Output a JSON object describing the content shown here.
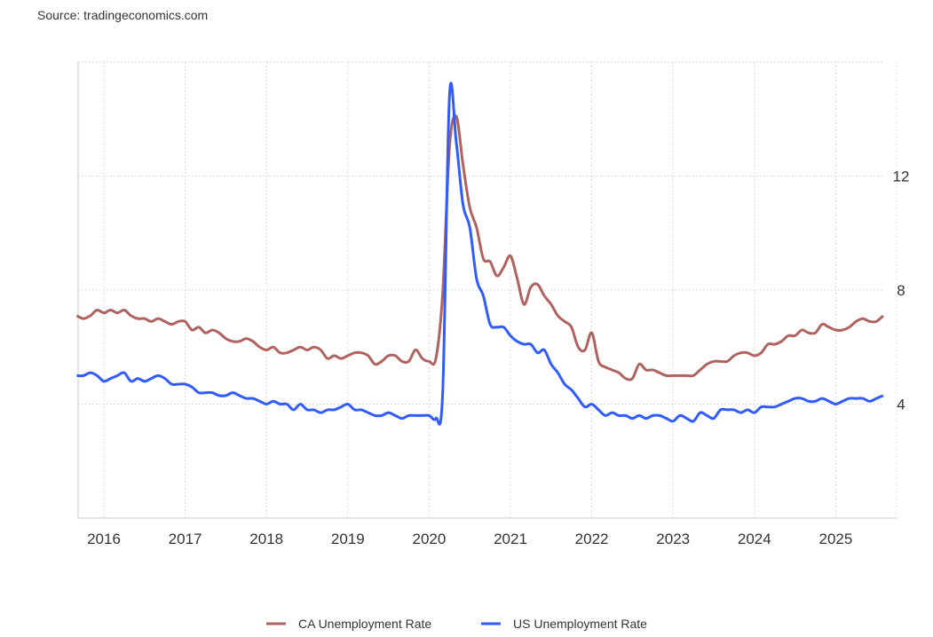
{
  "source": "Source: tradingeconomics.com",
  "chart_data": {
    "type": "line",
    "title": "",
    "xlabel": "",
    "ylabel": "",
    "x_start": "2015-09",
    "x_frequency": "monthly",
    "x_ticks": [
      "2016",
      "2017",
      "2018",
      "2019",
      "2020",
      "2021",
      "2022",
      "2023",
      "2024",
      "2025"
    ],
    "y_ticks": [
      "4",
      "8",
      "12"
    ],
    "ylim": [
      0,
      16
    ],
    "grid": true,
    "legend_position": "bottom",
    "series": [
      {
        "name": "CA Unemployment Rate",
        "color": "#b0625e",
        "values": [
          7.1,
          7.0,
          7.1,
          7.3,
          7.2,
          7.3,
          7.2,
          7.3,
          7.1,
          7.0,
          7.0,
          6.9,
          7.0,
          6.9,
          6.8,
          6.9,
          6.9,
          6.6,
          6.7,
          6.5,
          6.6,
          6.5,
          6.3,
          6.2,
          6.2,
          6.3,
          6.2,
          6.0,
          5.9,
          6.0,
          5.8,
          5.8,
          5.9,
          6.0,
          5.9,
          6.0,
          5.9,
          5.6,
          5.7,
          5.6,
          5.7,
          5.8,
          5.8,
          5.7,
          5.4,
          5.5,
          5.7,
          5.7,
          5.5,
          5.5,
          5.9,
          5.6,
          5.5,
          5.6,
          7.9,
          13.0,
          14.1,
          12.4,
          10.9,
          10.2,
          9.1,
          9.0,
          8.5,
          8.8,
          9.2,
          8.4,
          7.5,
          8.1,
          8.2,
          7.8,
          7.5,
          7.1,
          6.9,
          6.7,
          6.0,
          5.9,
          6.5,
          5.5,
          5.3,
          5.2,
          5.1,
          4.9,
          4.9,
          5.4,
          5.2,
          5.2,
          5.1,
          5.0,
          5.0,
          5.0,
          5.0,
          5.0,
          5.2,
          5.4,
          5.5,
          5.5,
          5.5,
          5.7,
          5.8,
          5.8,
          5.7,
          5.8,
          6.1,
          6.1,
          6.2,
          6.4,
          6.4,
          6.6,
          6.5,
          6.5,
          6.8,
          6.7,
          6.6,
          6.6,
          6.7,
          6.9,
          7.0,
          6.9,
          6.9,
          7.1
        ]
      },
      {
        "name": "US Unemployment Rate",
        "color": "#2f5bff",
        "values": [
          5.0,
          5.0,
          5.1,
          5.0,
          4.8,
          4.9,
          5.0,
          5.1,
          4.8,
          4.9,
          4.8,
          4.9,
          5.0,
          4.9,
          4.7,
          4.7,
          4.7,
          4.6,
          4.4,
          4.4,
          4.4,
          4.3,
          4.3,
          4.4,
          4.3,
          4.2,
          4.2,
          4.1,
          4.0,
          4.1,
          4.0,
          4.0,
          3.8,
          4.0,
          3.8,
          3.8,
          3.7,
          3.8,
          3.8,
          3.9,
          4.0,
          3.8,
          3.8,
          3.7,
          3.6,
          3.6,
          3.7,
          3.6,
          3.5,
          3.6,
          3.6,
          3.6,
          3.6,
          3.5,
          4.4,
          14.8,
          13.2,
          11.0,
          10.2,
          8.4,
          7.8,
          6.8,
          6.7,
          6.7,
          6.4,
          6.2,
          6.1,
          6.1,
          5.8,
          5.9,
          5.4,
          5.1,
          4.7,
          4.5,
          4.2,
          3.9,
          4.0,
          3.8,
          3.6,
          3.7,
          3.6,
          3.6,
          3.5,
          3.6,
          3.5,
          3.6,
          3.6,
          3.5,
          3.4,
          3.6,
          3.5,
          3.4,
          3.7,
          3.6,
          3.5,
          3.8,
          3.8,
          3.8,
          3.7,
          3.8,
          3.7,
          3.9,
          3.9,
          3.9,
          4.0,
          4.1,
          4.2,
          4.2,
          4.1,
          4.1,
          4.2,
          4.1,
          4.0,
          4.1,
          4.2,
          4.2,
          4.2,
          4.1,
          4.2,
          4.3
        ]
      }
    ]
  }
}
